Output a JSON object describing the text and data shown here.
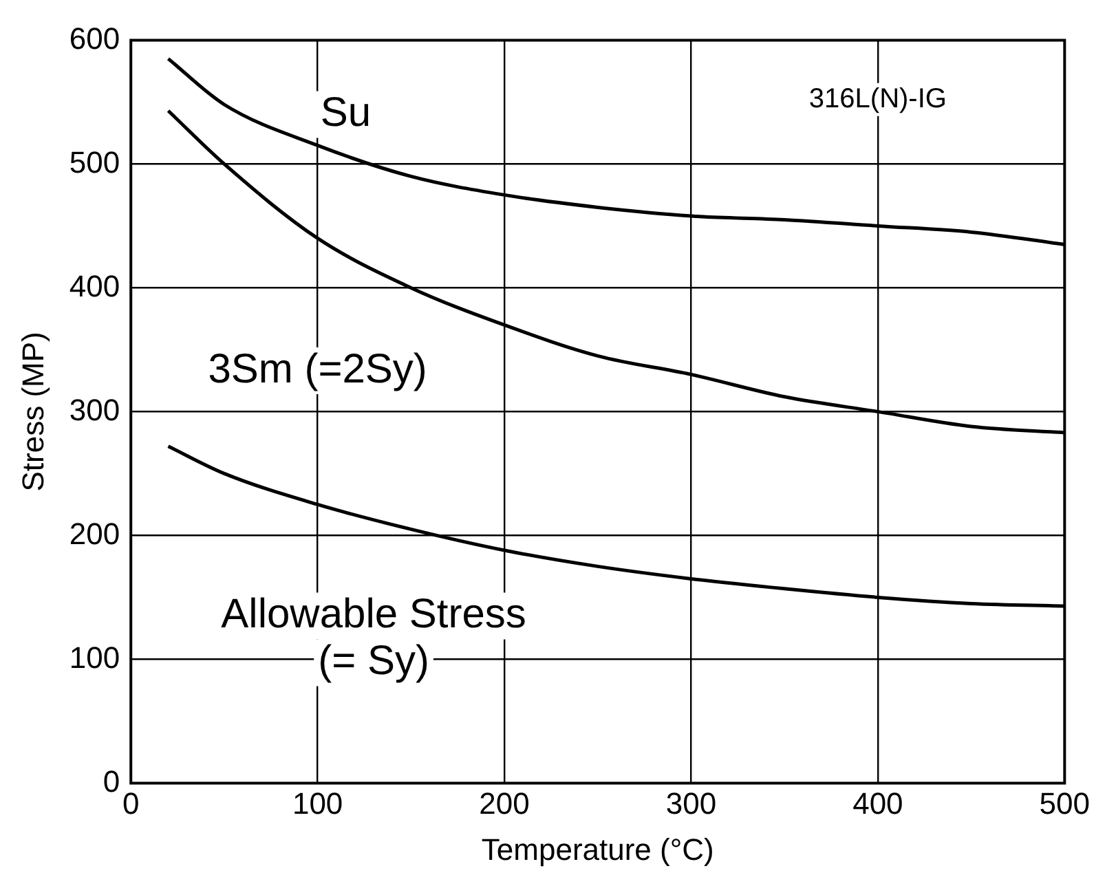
{
  "chart_data": {
    "type": "line",
    "xlabel": "Temperature (°C)",
    "ylabel": "Stress (MP)",
    "x": [
      20,
      50,
      100,
      150,
      200,
      250,
      300,
      350,
      400,
      450,
      500
    ],
    "series": [
      {
        "color": "#000000",
        "values": [
          585,
          548,
          515,
          490,
          475,
          465,
          458,
          455,
          450,
          445,
          435
        ]
      },
      {
        "color": "#000000",
        "values": [
          543,
          500,
          440,
          400,
          370,
          345,
          330,
          312,
          300,
          288,
          283
        ]
      },
      {
        "color": "#000000",
        "values": [
          272,
          250,
          225,
          205,
          188,
          175,
          165,
          157,
          150,
          145,
          143
        ]
      }
    ],
    "xlim": [
      0,
      500
    ],
    "xticks": [
      0,
      100,
      200,
      300,
      400,
      500
    ],
    "ylim": [
      0,
      600
    ],
    "yticks": [
      0,
      100,
      200,
      300,
      400,
      500,
      600
    ],
    "grid": true,
    "legend": false,
    "marker": "none",
    "line_style": "solid",
    "annotations": [
      "Su",
      "3Sm (=2Sy)",
      "Allowable Stress\n(= Sy)",
      "316L(N)-IG"
    ]
  }
}
